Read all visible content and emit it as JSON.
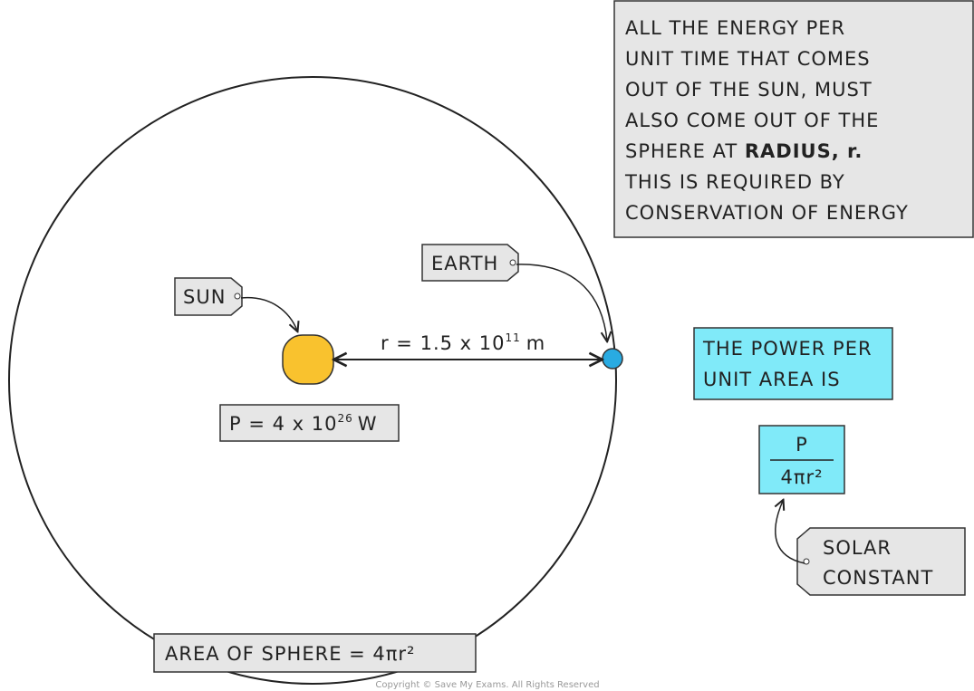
{
  "info_box": {
    "lines": [
      "ALL THE ENERGY PER",
      "UNIT TIME THAT COMES",
      "OUT OF THE SUN, MUST",
      "ALSO COME OUT OF THE",
      "SPHERE AT",
      "THIS IS REQUIRED BY",
      "CONSERVATION OF ENERGY"
    ],
    "emphasis": "RADIUS, r."
  },
  "labels": {
    "earth": "EARTH",
    "sun": "SUN"
  },
  "radius": {
    "text": "r = 1.5 x 10",
    "exponent": "11",
    "unit": "m"
  },
  "power": {
    "text": "P = 4 x 10",
    "exponent": "26",
    "unit": "W"
  },
  "power_per_area": {
    "lines": [
      "THE POWER PER",
      "UNIT AREA IS"
    ]
  },
  "fraction": {
    "numerator": "P",
    "denominator": "4πr²"
  },
  "solar_constant": {
    "lines": [
      "SOLAR",
      "CONSTANT"
    ]
  },
  "sphere_area": "AREA OF SPHERE = 4πr²",
  "copyright": "Copyright © Save My Exams. All Rights Reserved"
}
